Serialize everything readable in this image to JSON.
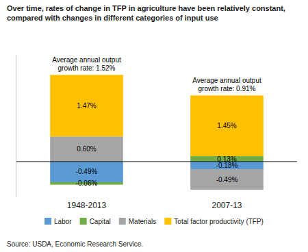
{
  "chart_data": {
    "type": "bar",
    "stacked": true,
    "data_labels": true,
    "tick_labels": "x",
    "title": "Over time, rates of change in TFP in agriculture have been relatively constant, compared with changes in different categories of input use",
    "categories": [
      "1948-2013",
      "2007-13"
    ],
    "series": [
      {
        "name": "Labor",
        "color": "#5b9bd5",
        "values": [
          -0.49,
          -0.18
        ],
        "value_labels": [
          "-0.49%",
          "-0.18%"
        ]
      },
      {
        "name": "Capital",
        "color": "#70ad47",
        "values": [
          -0.06,
          0.13
        ],
        "value_labels": [
          "-0.06%",
          "0.13%"
        ]
      },
      {
        "name": "Materials",
        "color": "#a5a5a5",
        "values": [
          0.6,
          -0.49
        ],
        "value_labels": [
          "0.60%",
          "-0.49%"
        ]
      },
      {
        "name": "Total factor productivity (TFP)",
        "color": "#ffc000",
        "values": [
          1.47,
          1.45
        ],
        "value_labels": [
          "1.47%",
          "1.45%"
        ]
      }
    ],
    "annotations": [
      {
        "text": "Average annual output\ngrowth rate: 1.52%",
        "category": "1948-2013"
      },
      {
        "text": "Average annual output\ngrowth rate: 0.91%",
        "category": "2007-13"
      }
    ],
    "ylim": [
      -0.85,
      2.55
    ],
    "source": "Source:  USDA, Economic Research Service."
  }
}
